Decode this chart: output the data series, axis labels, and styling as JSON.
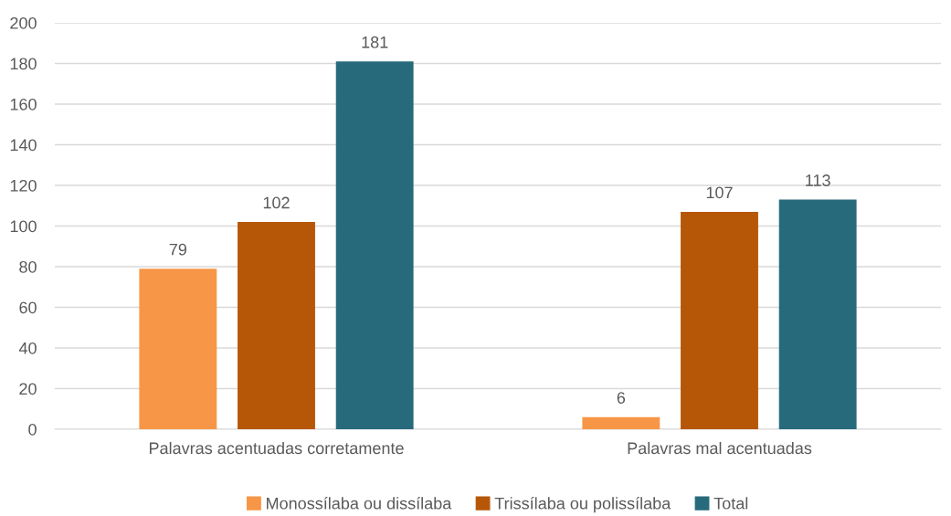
{
  "chart_data": {
    "type": "bar",
    "categories": [
      "Palavras acentuadas corretamente",
      "Palavras mal acentuadas"
    ],
    "series": [
      {
        "name": "Monossílaba ou dissílaba",
        "color": "#f79646",
        "values": [
          79,
          6
        ]
      },
      {
        "name": "Trissílaba ou polissílaba",
        "color": "#b65708",
        "values": [
          102,
          107
        ]
      },
      {
        "name": "Total",
        "color": "#276a7c",
        "values": [
          181,
          113
        ]
      }
    ],
    "ylim": [
      0,
      200
    ],
    "yticks": [
      0,
      20,
      40,
      60,
      80,
      100,
      120,
      140,
      160,
      180,
      200
    ],
    "grid": "y",
    "legend": "bottom",
    "data_labels": true
  }
}
